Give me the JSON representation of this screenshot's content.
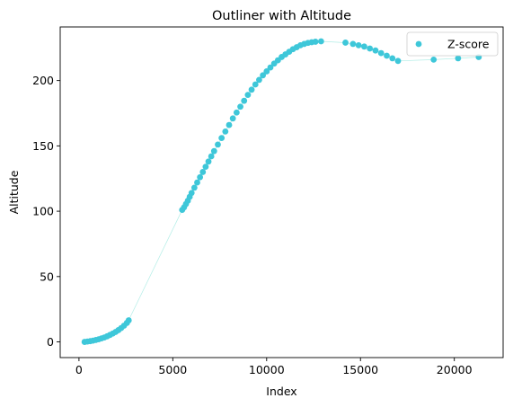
{
  "chart_data": {
    "type": "scatter",
    "title": "Outliner with Altitude",
    "xlabel": "Index",
    "ylabel": "Altitude",
    "xlim": [
      -1000,
      22600
    ],
    "ylim": [
      -12,
      241
    ],
    "xticks": [
      0,
      5000,
      10000,
      15000,
      20000
    ],
    "yticks": [
      0,
      50,
      100,
      150,
      200
    ],
    "legend_position": "top-right",
    "grid": false,
    "colors": {
      "points": "#3ec7d9",
      "trend_line": "#9ee8e0"
    },
    "series": [
      {
        "name": "Z-score",
        "x": [
          300,
          450,
          600,
          750,
          900,
          1050,
          1200,
          1350,
          1500,
          1650,
          1800,
          1950,
          2100,
          2250,
          2400,
          2550,
          2650,
          5500,
          5600,
          5700,
          5800,
          5900,
          6000,
          6150,
          6300,
          6450,
          6600,
          6750,
          6900,
          7050,
          7200,
          7400,
          7600,
          7800,
          8000,
          8200,
          8400,
          8600,
          8800,
          9000,
          9200,
          9400,
          9600,
          9800,
          10000,
          10200,
          10400,
          10600,
          10800,
          11000,
          11200,
          11400,
          11600,
          11800,
          12000,
          12200,
          12400,
          12600,
          12900,
          14200,
          14600,
          14900,
          15200,
          15500,
          15800,
          16100,
          16400,
          16700,
          17000,
          18900,
          20200,
          21300
        ],
        "y": [
          0,
          0.3,
          0.6,
          1.0,
          1.5,
          2.0,
          2.7,
          3.4,
          4.3,
          5.3,
          6.4,
          7.6,
          9.0,
          10.6,
          12.4,
          14.5,
          16.5,
          101,
          103,
          105.5,
          108,
          111,
          114,
          118,
          122,
          126,
          130,
          134,
          138,
          142,
          146,
          151,
          156,
          161,
          166,
          171,
          175.5,
          180,
          184.5,
          189,
          193,
          197,
          200.5,
          204,
          207,
          210,
          213,
          215.5,
          218,
          220,
          222,
          224,
          225.5,
          227,
          228,
          228.8,
          229.3,
          229.7,
          230,
          229,
          228,
          227,
          226,
          224.5,
          223,
          221,
          219,
          217,
          215,
          216,
          217,
          218
        ]
      }
    ]
  }
}
